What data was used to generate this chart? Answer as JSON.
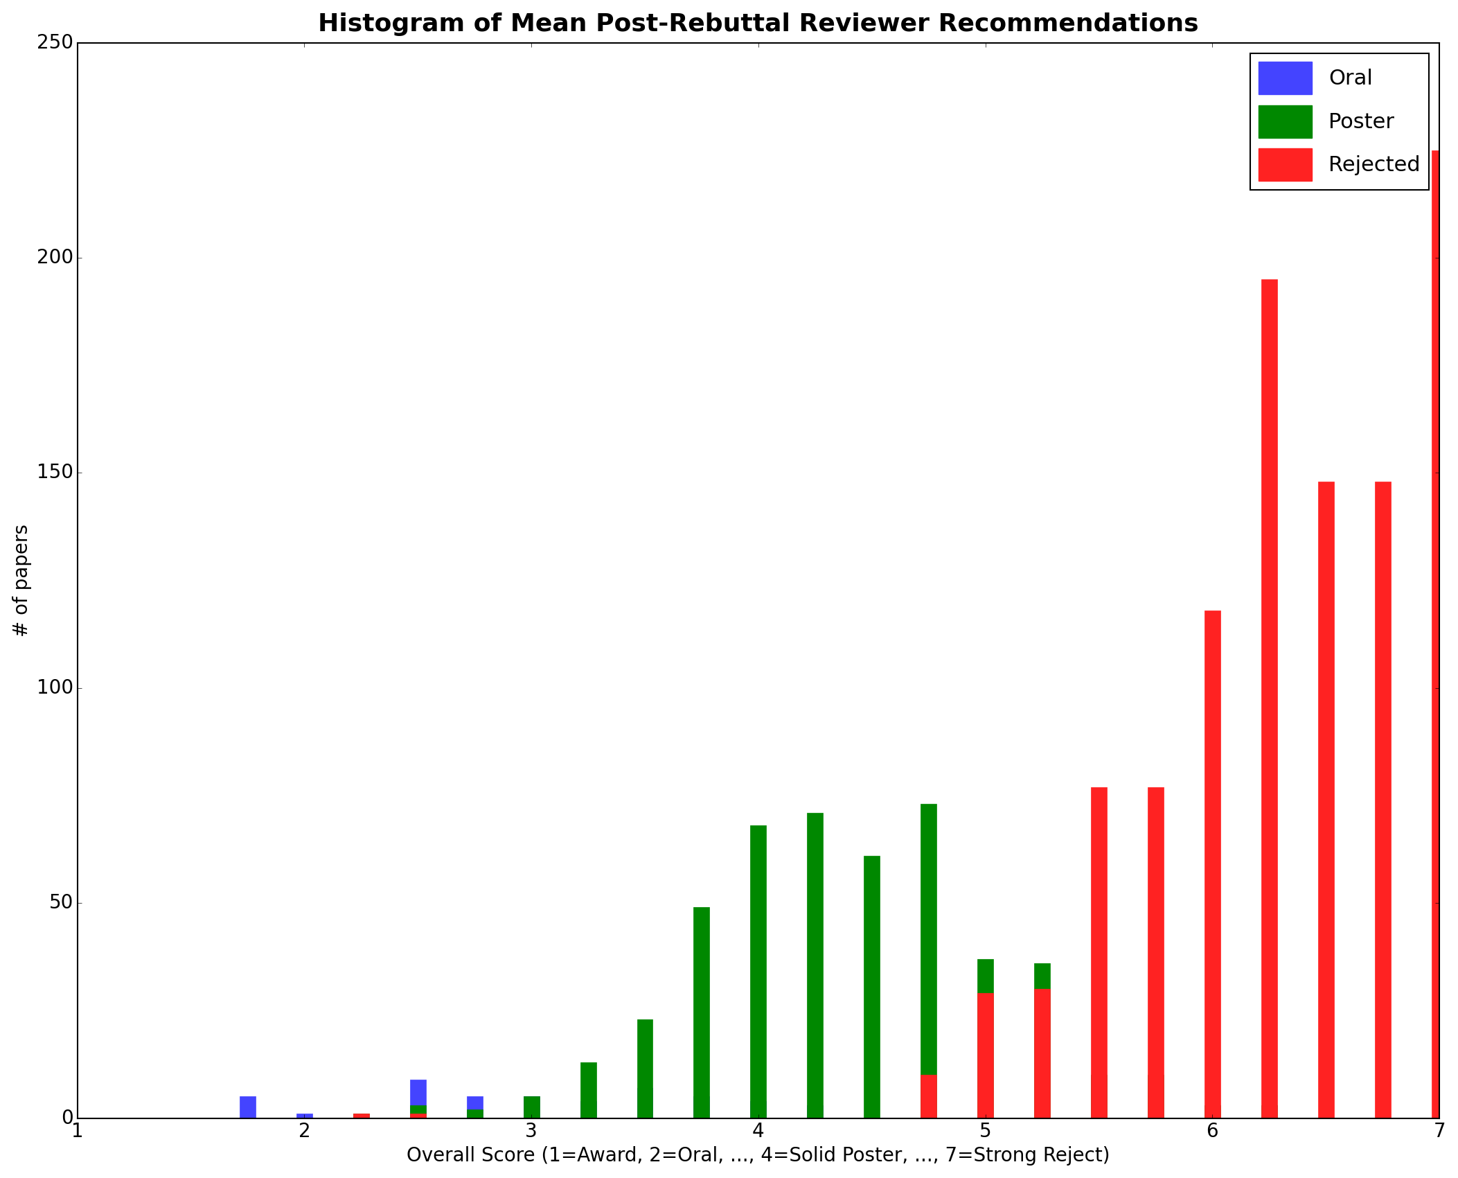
{
  "title": "Histogram of Mean Post-Rebuttal Reviewer Recommendations",
  "xlabel": "Overall Score (1=Award, 2=Oral, ..., 4=Solid Poster, ..., 7=Strong Reject)",
  "ylabel": "# of papers",
  "xlim": [
    1,
    7
  ],
  "ylim": [
    0,
    250
  ],
  "yticks": [
    0,
    50,
    100,
    150,
    200,
    250
  ],
  "xticks": [
    1,
    2,
    3,
    4,
    5,
    6,
    7
  ],
  "colors": {
    "Oral": "#4444ff",
    "Poster": "#008800",
    "Rejected": "#ff2222"
  },
  "bar_width": 0.07,
  "oral_data": {
    "bins": [
      1.75,
      2.0,
      2.5,
      2.75,
      3.0,
      3.25,
      3.5,
      3.75,
      4.0,
      4.25
    ],
    "counts": [
      5,
      1,
      9,
      5,
      5,
      4,
      7,
      5,
      4,
      3
    ]
  },
  "poster_data": {
    "bins": [
      2.25,
      2.5,
      2.75,
      3.0,
      3.25,
      3.5,
      3.75,
      4.0,
      4.25,
      4.5,
      4.75,
      5.0,
      5.25,
      5.5,
      5.75,
      6.0,
      6.25
    ],
    "counts": [
      1,
      3,
      2,
      5,
      13,
      23,
      49,
      68,
      71,
      61,
      73,
      37,
      36,
      10,
      10,
      3,
      3
    ]
  },
  "rejected_data": {
    "bins": [
      2.25,
      2.5,
      4.75,
      5.0,
      5.25,
      5.5,
      5.75,
      6.0,
      6.25,
      6.5,
      6.75,
      7.0
    ],
    "counts": [
      1,
      1,
      10,
      29,
      30,
      77,
      77,
      118,
      195,
      148,
      148,
      225
    ]
  }
}
